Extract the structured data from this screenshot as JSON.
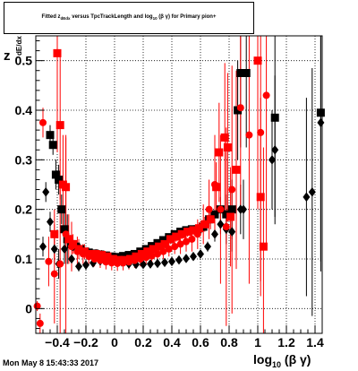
{
  "title_parts": {
    "a": "Fitted  z",
    "b": "dEdx",
    "c": "  versus  TpcTrackLength and log",
    "d": "10",
    "e": " (β γ) for Primary pion+"
  },
  "ylabel_parts": {
    "z": "z",
    "dedx": "dE/dx"
  },
  "xlabel_parts": {
    "main": "log",
    "sub": "10",
    "rest": " (β γ)"
  },
  "datestamp": "Mon May  8 15:43:33 2017",
  "colors": {
    "series_a": "#000000",
    "series_b": "#ff0000",
    "grid": "#000000"
  },
  "chart_data": {
    "type": "scatter",
    "xlim": [
      -0.55,
      1.45
    ],
    "ylim": [
      -0.05,
      0.55
    ],
    "xticks": [
      -0.4,
      -0.2,
      0,
      0.2,
      0.4,
      0.6,
      0.8,
      1,
      1.2,
      1.4
    ],
    "xtick_labels": [
      "−0.4",
      "−0.2",
      "0",
      "0.2",
      "0.4",
      "0.6",
      "0.8",
      "1",
      "1.2",
      "1.4"
    ],
    "yticks": [
      0,
      0.1,
      0.2,
      0.3,
      0.4,
      0.5
    ],
    "ytick_labels": [
      "0",
      "0.1",
      "0.2",
      "0.3",
      "0.4",
      "0.5"
    ],
    "grid": true,
    "series": [
      {
        "marker": "square",
        "color": "#000000",
        "points": [
          [
            -0.45,
            0.35,
            0.02
          ],
          [
            -0.43,
            0.33,
            0.02
          ],
          [
            -0.41,
            0.27,
            0.03
          ],
          [
            -0.39,
            0.26,
            0.03
          ],
          [
            -0.37,
            0.2,
            0.03
          ],
          [
            -0.35,
            0.16,
            0.04
          ],
          [
            -0.33,
            0.14,
            0.05
          ],
          [
            -0.3,
            0.13,
            0.01
          ],
          [
            -0.27,
            0.125,
            0.01
          ],
          [
            -0.24,
            0.12,
            0.01
          ],
          [
            -0.21,
            0.115,
            0.01
          ],
          [
            -0.18,
            0.113,
            0.01
          ],
          [
            -0.14,
            0.111,
            0.005
          ],
          [
            -0.1,
            0.109,
            0.005
          ],
          [
            -0.06,
            0.107,
            0.005
          ],
          [
            -0.02,
            0.105,
            0.005
          ],
          [
            0.02,
            0.104,
            0.005
          ],
          [
            0.06,
            0.106,
            0.005
          ],
          [
            0.1,
            0.108,
            0.005
          ],
          [
            0.14,
            0.11,
            0.005
          ],
          [
            0.18,
            0.115,
            0.005
          ],
          [
            0.22,
            0.12,
            0.005
          ],
          [
            0.26,
            0.126,
            0.005
          ],
          [
            0.3,
            0.132,
            0.005
          ],
          [
            0.34,
            0.138,
            0.005
          ],
          [
            0.38,
            0.144,
            0.005
          ],
          [
            0.42,
            0.15,
            0.005
          ],
          [
            0.46,
            0.155,
            0.005
          ],
          [
            0.5,
            0.158,
            0.006
          ],
          [
            0.54,
            0.16,
            0.007
          ],
          [
            0.58,
            0.16,
            0.008
          ],
          [
            0.62,
            0.165,
            0.01
          ],
          [
            0.66,
            0.18,
            0.015
          ],
          [
            0.7,
            0.19,
            0.02
          ],
          [
            0.74,
            0.2,
            0.025
          ],
          [
            0.78,
            0.19,
            0.04
          ],
          [
            0.82,
            0.2,
            0.06
          ],
          [
            0.86,
            0.4,
            0.1
          ],
          [
            0.88,
            0.475,
            0.15
          ],
          [
            0.92,
            0.475,
            0.15
          ],
          [
            1.12,
            0.385,
            0.2
          ],
          [
            1.44,
            0.395,
            0.3
          ]
        ]
      },
      {
        "marker": "diamond",
        "color": "#000000",
        "points": [
          [
            -0.5,
            0.125,
            0.02
          ],
          [
            -0.48,
            0.235,
            0.02
          ],
          [
            -0.45,
            0.175,
            0.02
          ],
          [
            -0.42,
            0.12,
            0.03
          ],
          [
            -0.39,
            0.09,
            0.03
          ],
          [
            -0.35,
            0.12,
            0.03
          ],
          [
            -0.3,
            0.1,
            0.01
          ],
          [
            -0.25,
            0.085,
            0.01
          ],
          [
            -0.2,
            0.088,
            0.01
          ],
          [
            -0.15,
            0.092,
            0.005
          ],
          [
            -0.1,
            0.096,
            0.005
          ],
          [
            -0.05,
            0.1,
            0.005
          ],
          [
            0,
            0.098,
            0.005
          ],
          [
            0.05,
            0.094,
            0.005
          ],
          [
            0.1,
            0.09,
            0.005
          ],
          [
            0.15,
            0.089,
            0.005
          ],
          [
            0.2,
            0.089,
            0.005
          ],
          [
            0.25,
            0.09,
            0.005
          ],
          [
            0.3,
            0.091,
            0.005
          ],
          [
            0.35,
            0.093,
            0.005
          ],
          [
            0.4,
            0.095,
            0.005
          ],
          [
            0.45,
            0.098,
            0.005
          ],
          [
            0.5,
            0.101,
            0.006
          ],
          [
            0.55,
            0.105,
            0.007
          ],
          [
            0.6,
            0.11,
            0.008
          ],
          [
            0.65,
            0.125,
            0.01
          ],
          [
            0.7,
            0.15,
            0.015
          ],
          [
            0.74,
            0.17,
            0.02
          ],
          [
            0.78,
            0.16,
            0.03
          ],
          [
            0.82,
            0.155,
            0.04
          ],
          [
            0.88,
            0.2,
            0.05
          ],
          [
            0.9,
            0.2,
            0.06
          ],
          [
            1.1,
            0.3,
            0.1
          ],
          [
            1.12,
            0.32,
            0.15
          ],
          [
            1.34,
            0.225,
            0.2
          ],
          [
            1.38,
            0.235,
            0.25
          ],
          [
            1.44,
            0.375,
            0.3
          ]
        ]
      },
      {
        "marker": "square",
        "color": "#ff0000",
        "points": [
          [
            -0.42,
            0.15,
            0.05
          ],
          [
            -0.4,
            0.515,
            0.2
          ],
          [
            -0.38,
            0.37,
            0.15
          ],
          [
            -0.36,
            0.25,
            0.1
          ],
          [
            -0.34,
            0.245,
            0.1
          ],
          [
            -0.32,
            0.14,
            0.05
          ],
          [
            -0.29,
            0.13,
            0.02
          ],
          [
            -0.25,
            0.12,
            0.02
          ],
          [
            -0.21,
            0.115,
            0.015
          ],
          [
            -0.17,
            0.11,
            0.01
          ],
          [
            -0.13,
            0.11,
            0.01
          ],
          [
            -0.09,
            0.108,
            0.01
          ],
          [
            -0.05,
            0.105,
            0.01
          ],
          [
            -0.01,
            0.1,
            0.01
          ],
          [
            0.03,
            0.098,
            0.01
          ],
          [
            0.07,
            0.098,
            0.01
          ],
          [
            0.11,
            0.1,
            0.01
          ],
          [
            0.15,
            0.105,
            0.01
          ],
          [
            0.19,
            0.11,
            0.01
          ],
          [
            0.23,
            0.115,
            0.01
          ],
          [
            0.27,
            0.12,
            0.01
          ],
          [
            0.31,
            0.125,
            0.01
          ],
          [
            0.35,
            0.13,
            0.01
          ],
          [
            0.39,
            0.14,
            0.01
          ],
          [
            0.43,
            0.145,
            0.01
          ],
          [
            0.47,
            0.15,
            0.01
          ],
          [
            0.51,
            0.155,
            0.01
          ],
          [
            0.55,
            0.158,
            0.01
          ],
          [
            0.59,
            0.162,
            0.012
          ],
          [
            0.63,
            0.17,
            0.015
          ],
          [
            0.67,
            0.18,
            0.02
          ],
          [
            0.71,
            0.245,
            0.05
          ],
          [
            0.73,
            0.315,
            0.1
          ],
          [
            0.77,
            0.345,
            0.15
          ],
          [
            0.79,
            0.325,
            0.15
          ],
          [
            0.81,
            0.185,
            0.1
          ],
          [
            0.85,
            0.28,
            0.2
          ],
          [
            1.0,
            0.5,
            0.3
          ],
          [
            1.02,
            0.225,
            0.2
          ],
          [
            1.04,
            0.125,
            0.2
          ]
        ]
      },
      {
        "marker": "circle",
        "color": "#ff0000",
        "points": [
          [
            -0.54,
            0.005,
            0.01
          ],
          [
            -0.52,
            -0.03,
            0.02
          ],
          [
            -0.5,
            0.375,
            0.03
          ],
          [
            -0.46,
            0.095,
            0.05
          ],
          [
            -0.42,
            0.07,
            0.1
          ],
          [
            -0.38,
            0.09,
            0.15
          ],
          [
            -0.34,
            0.15,
            0.2
          ],
          [
            -0.3,
            0.125,
            0.05
          ],
          [
            -0.26,
            0.115,
            0.03
          ],
          [
            -0.22,
            0.11,
            0.02
          ],
          [
            -0.18,
            0.105,
            0.015
          ],
          [
            -0.14,
            0.1,
            0.015
          ],
          [
            -0.1,
            0.097,
            0.015
          ],
          [
            -0.06,
            0.094,
            0.015
          ],
          [
            -0.02,
            0.092,
            0.015
          ],
          [
            0.02,
            0.091,
            0.015
          ],
          [
            0.06,
            0.092,
            0.015
          ],
          [
            0.1,
            0.094,
            0.015
          ],
          [
            0.14,
            0.097,
            0.015
          ],
          [
            0.18,
            0.1,
            0.015
          ],
          [
            0.22,
            0.103,
            0.015
          ],
          [
            0.26,
            0.106,
            0.015
          ],
          [
            0.3,
            0.11,
            0.015
          ],
          [
            0.34,
            0.115,
            0.015
          ],
          [
            0.38,
            0.12,
            0.015
          ],
          [
            0.42,
            0.125,
            0.015
          ],
          [
            0.46,
            0.13,
            0.02
          ],
          [
            0.5,
            0.135,
            0.02
          ],
          [
            0.54,
            0.14,
            0.025
          ],
          [
            0.58,
            0.15,
            0.03
          ],
          [
            0.62,
            0.17,
            0.04
          ],
          [
            0.66,
            0.2,
            0.06
          ],
          [
            0.7,
            0.25,
            0.1
          ],
          [
            0.74,
            0.2,
            0.15
          ],
          [
            0.78,
            0.165,
            0.2
          ],
          [
            0.82,
            0.24,
            0.25
          ],
          [
            0.88,
            0.405,
            0.2
          ],
          [
            0.94,
            0.35,
            0.3
          ],
          [
            1.02,
            0.355,
            0.3
          ],
          [
            1.06,
            0.43,
            0.3
          ]
        ]
      }
    ]
  }
}
